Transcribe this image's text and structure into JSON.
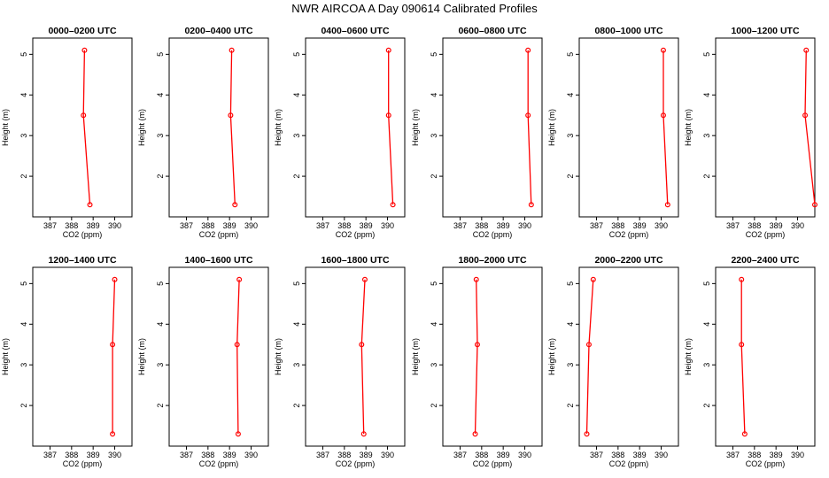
{
  "title": "NWR AIRCOA A  Day 090614  Calibrated Profiles",
  "colors": {
    "series": "#ff0000",
    "axis": "#000000",
    "background": "#ffffff"
  },
  "chart_data": [
    {
      "type": "line",
      "title": "0000–0200 UTC",
      "xlabel": "CO2 (ppm)",
      "ylabel": "Height (m)",
      "xlim": [
        386.2,
        390.8
      ],
      "ylim": [
        1.0,
        5.4
      ],
      "xticks": [
        387,
        388,
        389,
        390
      ],
      "yticks": [
        2,
        3,
        4,
        5
      ],
      "grid": false,
      "x": [
        388.85,
        388.55,
        388.6
      ],
      "y": [
        1.3,
        3.5,
        5.1
      ]
    },
    {
      "type": "line",
      "title": "0200–0400 UTC",
      "xlabel": "CO2 (ppm)",
      "ylabel": "Height (m)",
      "xlim": [
        386.2,
        390.8
      ],
      "ylim": [
        1.0,
        5.4
      ],
      "xticks": [
        387,
        388,
        389,
        390
      ],
      "yticks": [
        2,
        3,
        4,
        5
      ],
      "grid": false,
      "x": [
        389.25,
        389.05,
        389.1
      ],
      "y": [
        1.3,
        3.5,
        5.1
      ]
    },
    {
      "type": "line",
      "title": "0400–0600 UTC",
      "xlabel": "CO2 (ppm)",
      "ylabel": "Height (m)",
      "xlim": [
        386.2,
        390.8
      ],
      "ylim": [
        1.0,
        5.4
      ],
      "xticks": [
        387,
        388,
        389,
        390
      ],
      "yticks": [
        2,
        3,
        4,
        5
      ],
      "grid": false,
      "x": [
        390.25,
        390.05,
        390.05
      ],
      "y": [
        1.3,
        3.5,
        5.1
      ]
    },
    {
      "type": "line",
      "title": "0600–0800 UTC",
      "xlabel": "CO2 (ppm)",
      "ylabel": "Height (m)",
      "xlim": [
        386.2,
        390.8
      ],
      "ylim": [
        1.0,
        5.4
      ],
      "xticks": [
        387,
        388,
        389,
        390
      ],
      "yticks": [
        2,
        3,
        4,
        5
      ],
      "grid": false,
      "x": [
        390.3,
        390.15,
        390.15
      ],
      "y": [
        1.3,
        3.5,
        5.1
      ]
    },
    {
      "type": "line",
      "title": "0800–1000 UTC",
      "xlabel": "CO2 (ppm)",
      "ylabel": "Height (m)",
      "xlim": [
        386.2,
        390.8
      ],
      "ylim": [
        1.0,
        5.4
      ],
      "xticks": [
        387,
        388,
        389,
        390
      ],
      "yticks": [
        2,
        3,
        4,
        5
      ],
      "grid": false,
      "x": [
        390.3,
        390.1,
        390.1
      ],
      "y": [
        1.3,
        3.5,
        5.1
      ]
    },
    {
      "type": "line",
      "title": "1000–1200 UTC",
      "xlabel": "CO2 (ppm)",
      "ylabel": "Height (m)",
      "xlim": [
        386.2,
        390.8
      ],
      "ylim": [
        1.0,
        5.4
      ],
      "xticks": [
        387,
        388,
        389,
        390
      ],
      "yticks": [
        2,
        3,
        4,
        5
      ],
      "grid": false,
      "x": [
        390.8,
        390.35,
        390.4
      ],
      "y": [
        1.3,
        3.5,
        5.1
      ]
    },
    {
      "type": "line",
      "title": "1200–1400 UTC",
      "xlabel": "CO2 (ppm)",
      "ylabel": "Height (m)",
      "xlim": [
        386.2,
        390.8
      ],
      "ylim": [
        1.0,
        5.4
      ],
      "xticks": [
        387,
        388,
        389,
        390
      ],
      "yticks": [
        2,
        3,
        4,
        5
      ],
      "grid": false,
      "x": [
        389.9,
        389.9,
        390.0
      ],
      "y": [
        1.3,
        3.5,
        5.1
      ]
    },
    {
      "type": "line",
      "title": "1400–1600 UTC",
      "xlabel": "CO2 (ppm)",
      "ylabel": "Height (m)",
      "xlim": [
        386.2,
        390.8
      ],
      "ylim": [
        1.0,
        5.4
      ],
      "xticks": [
        387,
        388,
        389,
        390
      ],
      "yticks": [
        2,
        3,
        4,
        5
      ],
      "grid": false,
      "x": [
        389.4,
        389.35,
        389.45
      ],
      "y": [
        1.3,
        3.5,
        5.1
      ]
    },
    {
      "type": "line",
      "title": "1600–1800 UTC",
      "xlabel": "CO2 (ppm)",
      "ylabel": "Height (m)",
      "xlim": [
        386.2,
        390.8
      ],
      "ylim": [
        1.0,
        5.4
      ],
      "xticks": [
        387,
        388,
        389,
        390
      ],
      "yticks": [
        2,
        3,
        4,
        5
      ],
      "grid": false,
      "x": [
        388.9,
        388.8,
        388.95
      ],
      "y": [
        1.3,
        3.5,
        5.1
      ]
    },
    {
      "type": "line",
      "title": "1800–2000 UTC",
      "xlabel": "CO2 (ppm)",
      "ylabel": "Height (m)",
      "xlim": [
        386.2,
        390.8
      ],
      "ylim": [
        1.0,
        5.4
      ],
      "xticks": [
        387,
        388,
        389,
        390
      ],
      "yticks": [
        2,
        3,
        4,
        5
      ],
      "grid": false,
      "x": [
        387.7,
        387.8,
        387.75
      ],
      "y": [
        1.3,
        3.5,
        5.1
      ]
    },
    {
      "type": "line",
      "title": "2000–2200 UTC",
      "xlabel": "CO2 (ppm)",
      "ylabel": "Height (m)",
      "xlim": [
        386.2,
        390.8
      ],
      "ylim": [
        1.0,
        5.4
      ],
      "xticks": [
        387,
        388,
        389,
        390
      ],
      "yticks": [
        2,
        3,
        4,
        5
      ],
      "grid": false,
      "x": [
        386.55,
        386.65,
        386.85
      ],
      "y": [
        1.3,
        3.5,
        5.1
      ]
    },
    {
      "type": "line",
      "title": "2200–2400 UTC",
      "xlabel": "CO2 (ppm)",
      "ylabel": "Height (m)",
      "xlim": [
        386.2,
        390.8
      ],
      "ylim": [
        1.0,
        5.4
      ],
      "xticks": [
        387,
        388,
        389,
        390
      ],
      "yticks": [
        2,
        3,
        4,
        5
      ],
      "grid": false,
      "x": [
        387.55,
        387.4,
        387.4
      ],
      "y": [
        1.3,
        3.5,
        5.1
      ]
    }
  ]
}
